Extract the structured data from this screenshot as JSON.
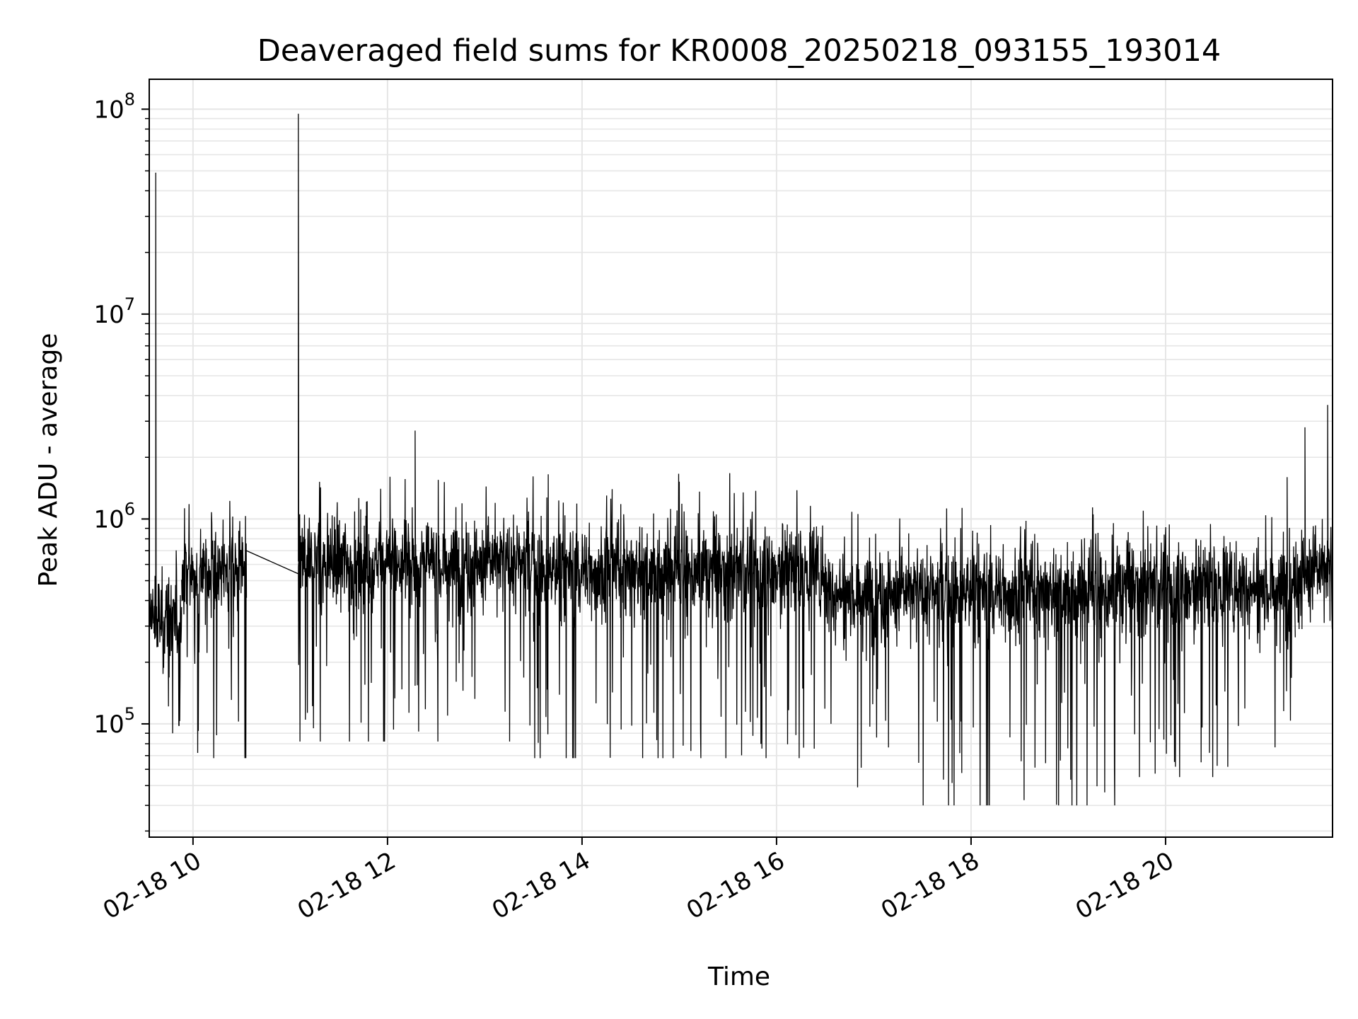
{
  "chart_data": {
    "type": "line",
    "title": "Deaveraged field sums for KR0008_20250218_093155_193014",
    "xlabel": "Time",
    "ylabel": "Peak ADU - average",
    "yscale": "log",
    "grid": true,
    "line_color": "#000000",
    "grid_color": "#e6e6e6",
    "x_range": [
      "02-18 09:33",
      "02-18 21:43"
    ],
    "ylim": [
      28000,
      140000000
    ],
    "x_ticks": [
      "02-18 10",
      "02-18 12",
      "02-18 14",
      "02-18 16",
      "02-18 18",
      "02-18 20"
    ],
    "x_tick_hours": [
      10,
      12,
      14,
      16,
      18,
      20
    ],
    "y_ticks": [
      {
        "value": 100000,
        "base": "10",
        "exp": "5"
      },
      {
        "value": 1000000,
        "base": "10",
        "exp": "6"
      },
      {
        "value": 10000000,
        "base": "10",
        "exp": "7"
      },
      {
        "value": 100000000,
        "base": "10",
        "exp": "8"
      }
    ],
    "series": [
      {
        "segments": [
          {
            "start": "02-18 09:33",
            "end": "02-18 09:53",
            "typical": 320000,
            "low": 90000,
            "high": 720000
          },
          {
            "start": "02-18 09:53",
            "end": "02-18 10:33",
            "typical": 550000,
            "low": 68000,
            "high": 1250000
          },
          {
            "start": "02-18 11:05",
            "end": "02-18 13:30",
            "typical": 620000,
            "low": 82000,
            "high": 1650000
          },
          {
            "start": "02-18 13:30",
            "end": "02-18 16:30",
            "typical": 560000,
            "low": 68000,
            "high": 1680000
          },
          {
            "start": "02-18 16:30",
            "end": "02-18 19:30",
            "typical": 440000,
            "low": 40000,
            "high": 1150000
          },
          {
            "start": "02-18 19:30",
            "end": "02-18 21:20",
            "typical": 470000,
            "low": 55000,
            "high": 1100000
          },
          {
            "start": "02-18 21:20",
            "end": "02-18 21:43",
            "typical": 560000,
            "low": 290000,
            "high": 1000000
          }
        ],
        "spikes": [
          {
            "time": "02-18 09:37",
            "value": 49000000
          },
          {
            "time": "02-18 09:37",
            "value": 8000000
          },
          {
            "time": "02-18 11:05",
            "value": 95000000
          },
          {
            "time": "02-18 12:17",
            "value": 2700000
          },
          {
            "time": "02-18 21:15",
            "value": 1600000
          },
          {
            "time": "02-18 21:26",
            "value": 2800000
          },
          {
            "time": "02-18 21:40",
            "value": 3600000
          },
          {
            "time": "02-18 16:50",
            "value": 49000
          },
          {
            "time": "02-18 18:54",
            "value": 40000
          }
        ],
        "gap": {
          "from": {
            "time": "02-18 10:33",
            "value": 700000
          },
          "to": {
            "time": "02-18 11:05",
            "value": 540000
          }
        }
      }
    ]
  }
}
